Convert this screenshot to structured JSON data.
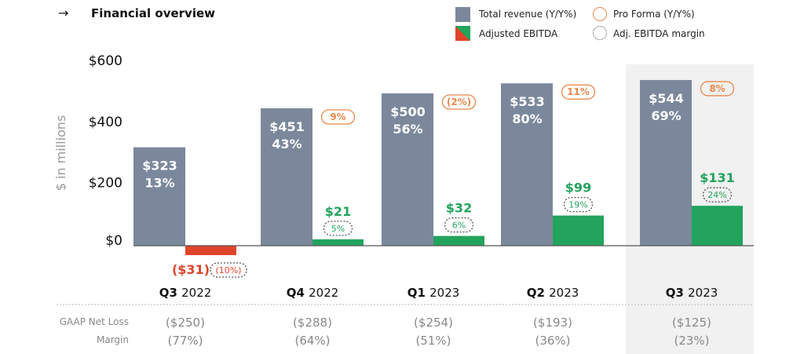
{
  "header": {
    "arrow_icon": "arrow-right-icon",
    "title": "Financial overview"
  },
  "legend": [
    {
      "label": "Total revenue (Y/Y%)",
      "swatch": "gray-square"
    },
    {
      "label": "Pro Forma (Y/Y%)",
      "swatch": "orange-circle"
    },
    {
      "label": "Adjusted EBITDA",
      "swatch": "red-green-square"
    },
    {
      "label": "Adj. EBITDA margin",
      "swatch": "dotted-circle"
    }
  ],
  "colors": {
    "revenue": "#7b889c",
    "ebitda_pos": "#22a45d",
    "ebitda_neg": "#e0452b",
    "pro_forma": "#e8884c",
    "highlight_bg": "#f1f1f1"
  },
  "chart_data": {
    "type": "bar",
    "ylabel": "$ in millions",
    "ylim": [
      0,
      600
    ],
    "yticks": [
      "$0",
      "$200",
      "$400",
      "$600"
    ],
    "ytick_values": [
      0,
      200,
      400,
      600
    ],
    "categories": [
      {
        "q": "Q3",
        "y": "2022"
      },
      {
        "q": "Q4",
        "y": "2022"
      },
      {
        "q": "Q1",
        "y": "2023"
      },
      {
        "q": "Q2",
        "y": "2023"
      },
      {
        "q": "Q3",
        "y": "2023"
      }
    ],
    "highlighted_category": 4,
    "series": [
      {
        "name": "Total revenue",
        "values": [
          323,
          451,
          500,
          533,
          544
        ],
        "labels": [
          "$323",
          "$451",
          "$500",
          "$533",
          "$544"
        ],
        "yoy": [
          "13%",
          "43%",
          "56%",
          "80%",
          "69%"
        ]
      },
      {
        "name": "Adjusted EBITDA",
        "values": [
          -31,
          21,
          32,
          99,
          131
        ],
        "labels": [
          "($31)",
          "$21",
          "$32",
          "$99",
          "$131"
        ],
        "margin": [
          "(10%)",
          "5%",
          "6%",
          "19%",
          "24%"
        ]
      }
    ],
    "pro_forma": [
      null,
      "9%",
      "(2%)",
      "11%",
      "8%"
    ]
  },
  "table": {
    "rows": [
      {
        "label": "GAAP Net Loss",
        "values": [
          "($250)",
          "($288)",
          "($254)",
          "($193)",
          "($125)"
        ]
      },
      {
        "label": "Margin",
        "values": [
          "(77%)",
          "(64%)",
          "(51%)",
          "(36%)",
          "(23%)"
        ]
      }
    ]
  }
}
